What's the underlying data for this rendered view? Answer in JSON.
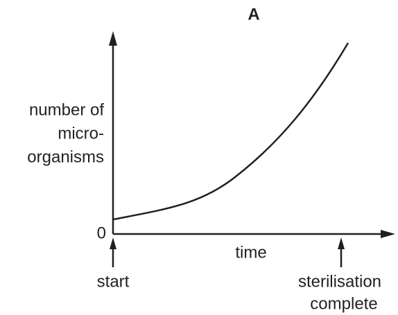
{
  "title": "A",
  "y_axis_label": [
    "number of",
    "micro-",
    "organisms"
  ],
  "origin_label": "0",
  "x_axis_label": "time",
  "markers": [
    {
      "label": [
        "start"
      ]
    },
    {
      "label": [
        "sterilisation",
        "complete"
      ]
    }
  ]
}
